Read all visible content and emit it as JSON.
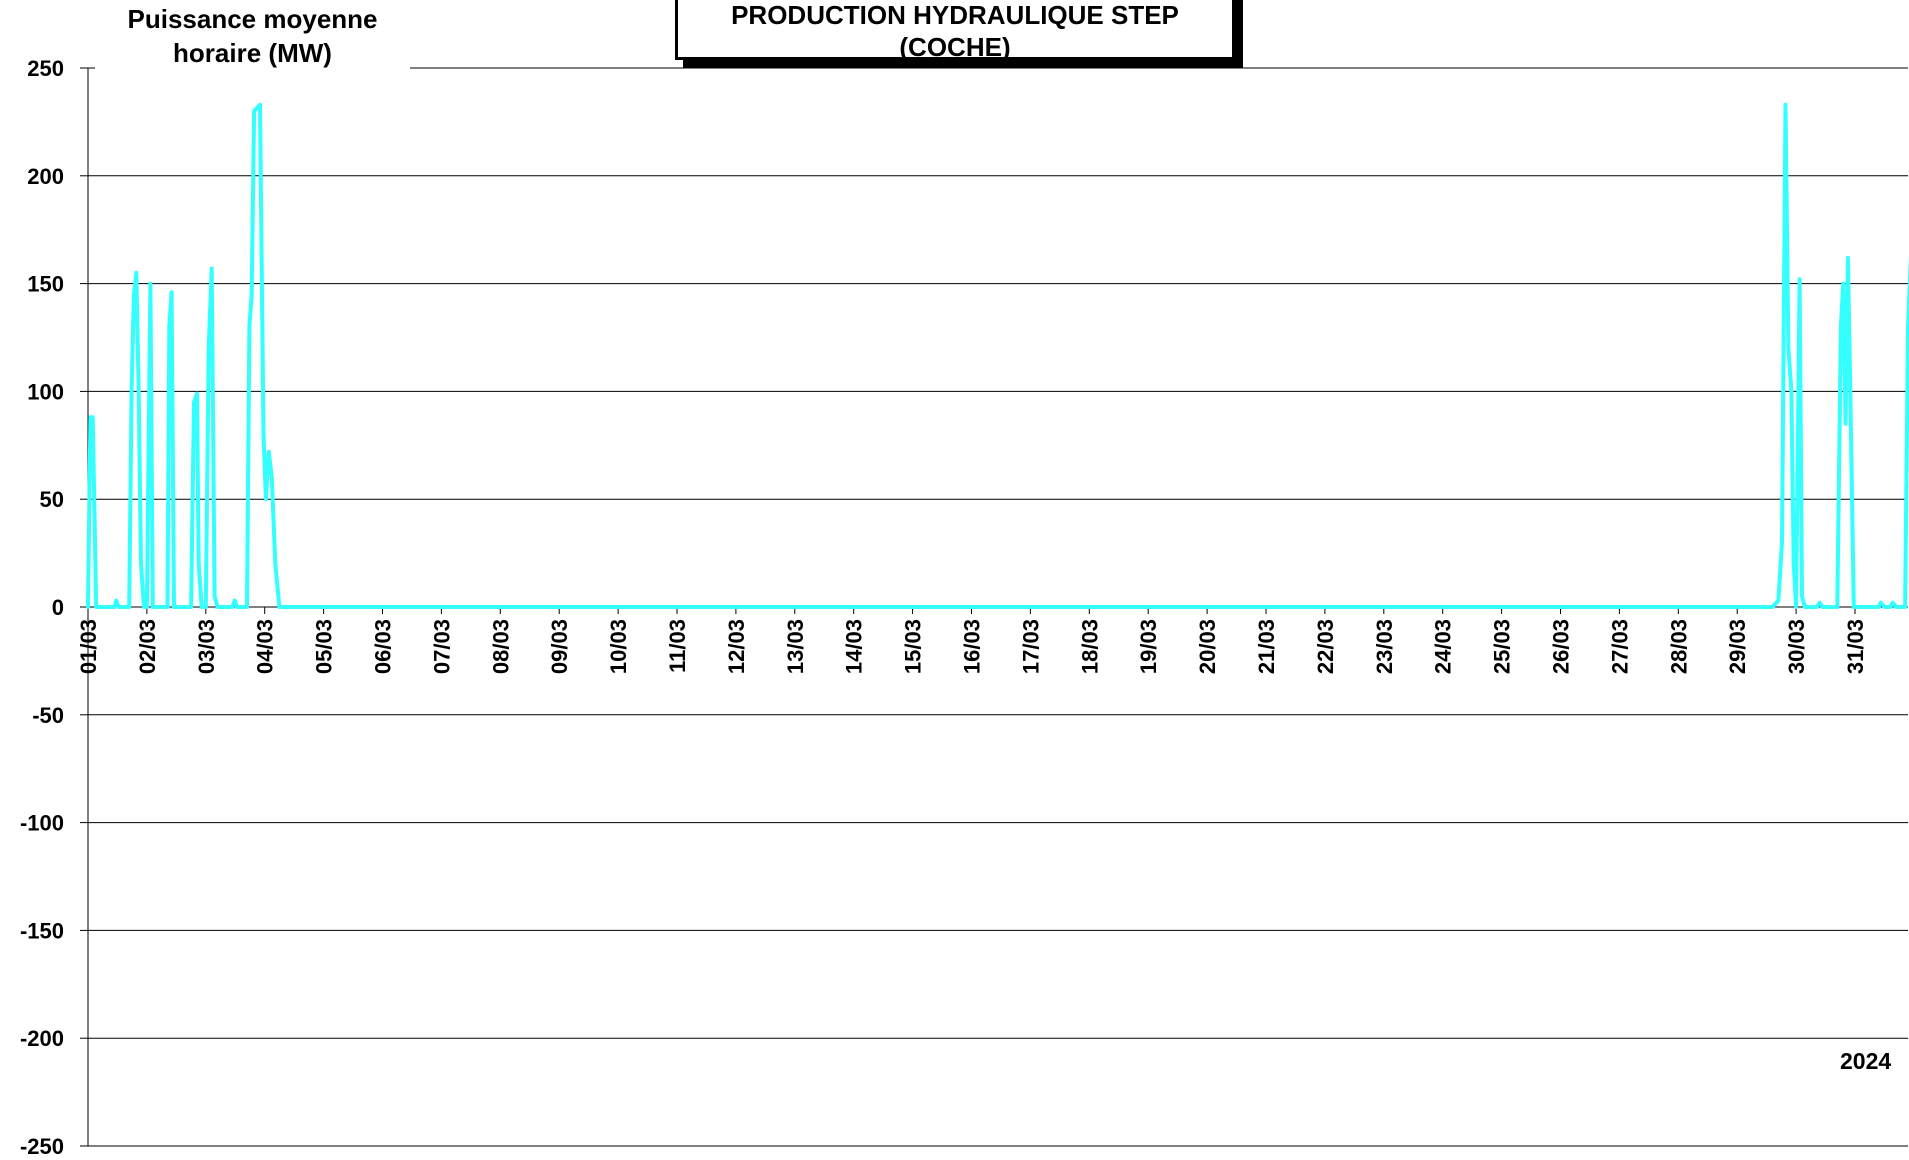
{
  "chart_data": {
    "type": "line",
    "title_lines": [
      "PRODUCTION HYDRAULIQUE STEP",
      "(COCHE)"
    ],
    "ylabel_lines": [
      "Puissance moyenne",
      "horaire (MW)"
    ],
    "year_label": "2024",
    "ylim": [
      -250,
      250
    ],
    "yticks": [
      250,
      200,
      150,
      100,
      50,
      0,
      -50,
      -100,
      -150,
      -200,
      -250
    ],
    "xlim_days": [
      1,
      32
    ],
    "xtick_labels": [
      "01/03",
      "02/03",
      "03/03",
      "04/03",
      "05/03",
      "06/03",
      "07/03",
      "08/03",
      "09/03",
      "10/03",
      "11/03",
      "12/03",
      "13/03",
      "14/03",
      "15/03",
      "16/03",
      "17/03",
      "18/03",
      "19/03",
      "20/03",
      "21/03",
      "22/03",
      "23/03",
      "24/03",
      "25/03",
      "26/03",
      "27/03",
      "28/03",
      "29/03",
      "30/03",
      "31/03"
    ],
    "grid": true,
    "series": [
      {
        "color": "#33FFFF",
        "points": [
          [
            1.0,
            0
          ],
          [
            1.04,
            88
          ],
          [
            1.08,
            88
          ],
          [
            1.14,
            0
          ],
          [
            1.45,
            0
          ],
          [
            1.48,
            3
          ],
          [
            1.52,
            0
          ],
          [
            1.7,
            0
          ],
          [
            1.74,
            100
          ],
          [
            1.78,
            145
          ],
          [
            1.82,
            155
          ],
          [
            1.86,
            100
          ],
          [
            1.9,
            20
          ],
          [
            1.95,
            0
          ],
          [
            2.0,
            0
          ],
          [
            2.06,
            150
          ],
          [
            2.1,
            0
          ],
          [
            2.35,
            0
          ],
          [
            2.38,
            130
          ],
          [
            2.42,
            146
          ],
          [
            2.46,
            0
          ],
          [
            2.75,
            0
          ],
          [
            2.8,
            95
          ],
          [
            2.85,
            99
          ],
          [
            2.88,
            20
          ],
          [
            2.93,
            0
          ],
          [
            3.0,
            0
          ],
          [
            3.05,
            120
          ],
          [
            3.1,
            157
          ],
          [
            3.15,
            5
          ],
          [
            3.2,
            0
          ],
          [
            3.45,
            0
          ],
          [
            3.49,
            3
          ],
          [
            3.53,
            0
          ],
          [
            3.7,
            0
          ],
          [
            3.74,
            130
          ],
          [
            3.78,
            145
          ],
          [
            3.82,
            230
          ],
          [
            3.92,
            233
          ],
          [
            3.98,
            80
          ],
          [
            4.02,
            50
          ],
          [
            4.07,
            72
          ],
          [
            4.12,
            60
          ],
          [
            4.18,
            20
          ],
          [
            4.25,
            0
          ],
          [
            5,
            0
          ],
          [
            10,
            0
          ],
          [
            15,
            0
          ],
          [
            20,
            0
          ],
          [
            25,
            0
          ],
          [
            29,
            0
          ],
          [
            29.6,
            0
          ],
          [
            29.7,
            3
          ],
          [
            29.76,
            30
          ],
          [
            29.82,
            233
          ],
          [
            29.87,
            120
          ],
          [
            29.92,
            100
          ],
          [
            29.96,
            20
          ],
          [
            30.0,
            0
          ],
          [
            30.06,
            152
          ],
          [
            30.1,
            5
          ],
          [
            30.15,
            0
          ],
          [
            30.35,
            0
          ],
          [
            30.4,
            2
          ],
          [
            30.45,
            0
          ],
          [
            30.7,
            0
          ],
          [
            30.76,
            130
          ],
          [
            30.8,
            150
          ],
          [
            30.84,
            85
          ],
          [
            30.88,
            162
          ],
          [
            30.92,
            100
          ],
          [
            30.98,
            0
          ],
          [
            31.4,
            0
          ],
          [
            31.44,
            2
          ],
          [
            31.5,
            0
          ],
          [
            31.6,
            0
          ],
          [
            31.64,
            2
          ],
          [
            31.7,
            0
          ],
          [
            31.85,
            0
          ],
          [
            31.9,
            130
          ],
          [
            31.95,
            163
          ],
          [
            32.0,
            150
          ]
        ]
      }
    ]
  }
}
